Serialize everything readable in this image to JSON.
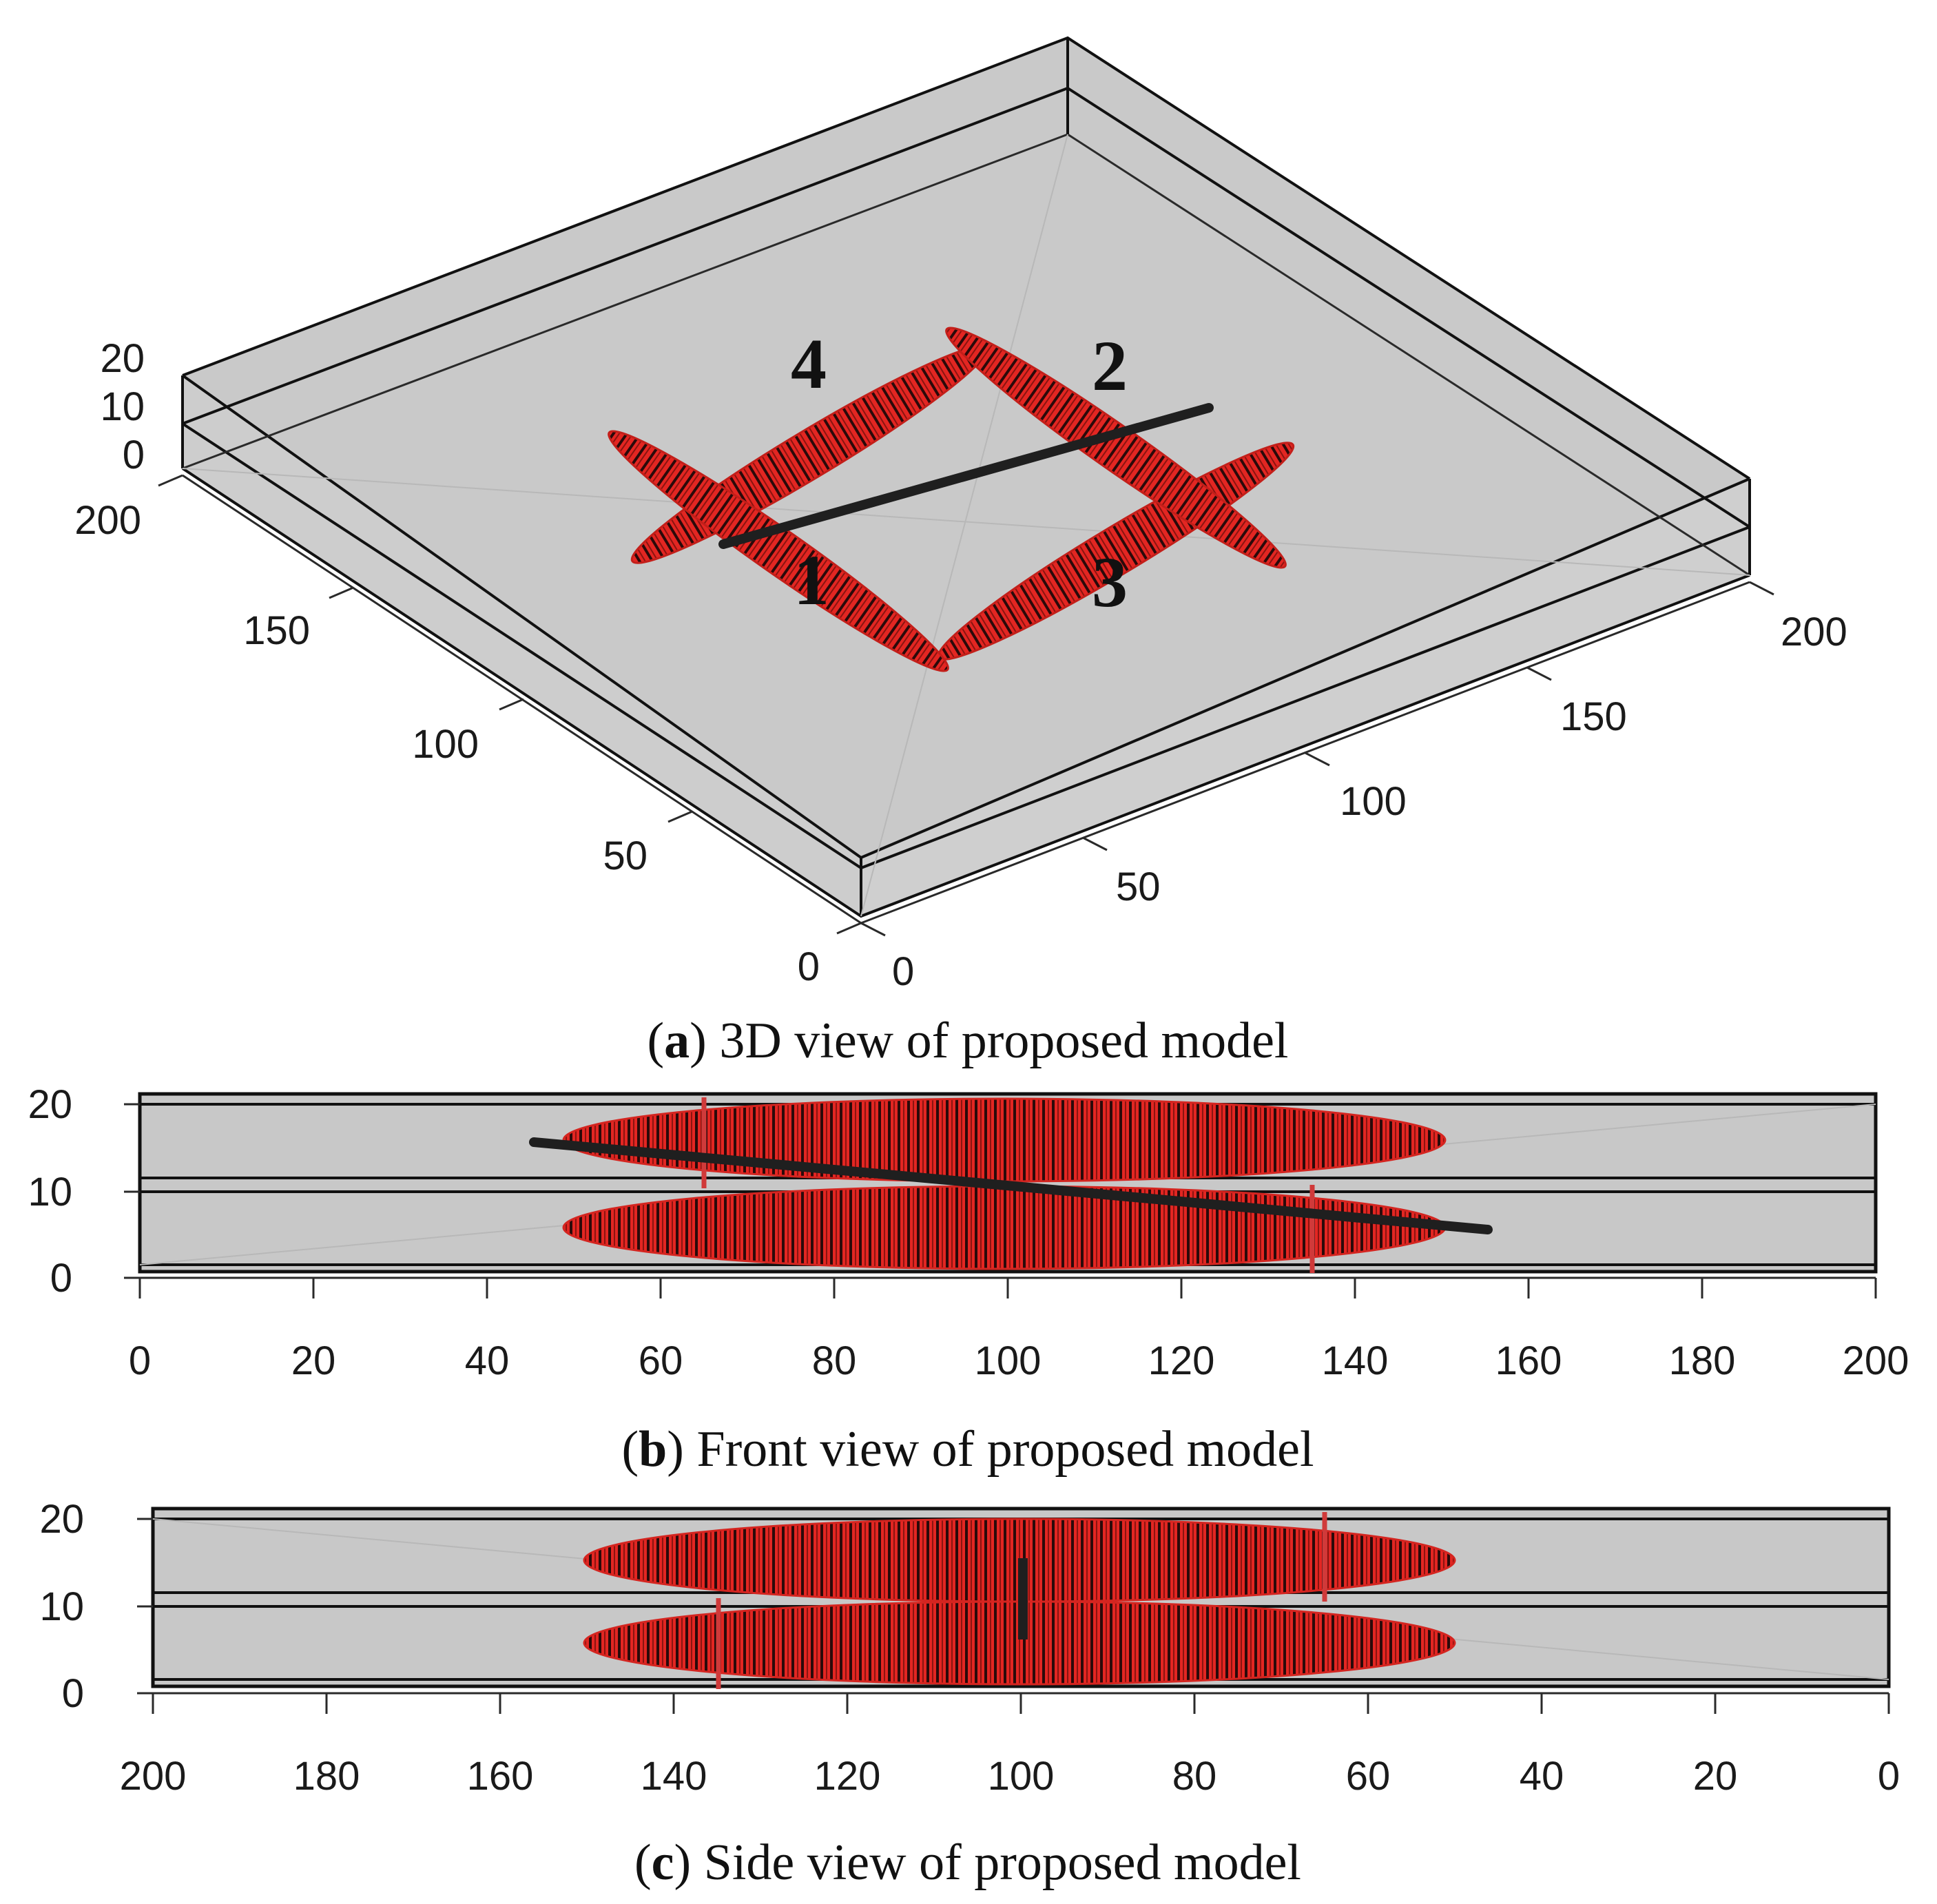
{
  "panels": {
    "a": {
      "caption_letter": "a",
      "caption_text": "3D view of proposed model",
      "z_ticks": [
        "20",
        "10",
        "0"
      ],
      "left_axis_ticks": [
        "200",
        "150",
        "100",
        "50",
        "0"
      ],
      "right_axis_ticks": [
        "0",
        "50",
        "100",
        "150",
        "200"
      ],
      "fracture_labels": [
        "1",
        "2",
        "3",
        "4"
      ]
    },
    "b": {
      "caption_letter": "b",
      "caption_text": "Front view of proposed model",
      "y_ticks": [
        "20",
        "10",
        "0"
      ],
      "x_ticks": [
        "0",
        "20",
        "40",
        "60",
        "80",
        "100",
        "120",
        "140",
        "160",
        "180",
        "200"
      ]
    },
    "c": {
      "caption_letter": "c",
      "caption_text": "Side view of proposed model",
      "y_ticks": [
        "20",
        "10",
        "0"
      ],
      "x_ticks": [
        "200",
        "180",
        "160",
        "140",
        "120",
        "100",
        "80",
        "60",
        "40",
        "20",
        "0"
      ]
    }
  },
  "colors": {
    "block": "#c4c4c4",
    "block_top": "#cacaca",
    "fracture": "#e32622",
    "fracture_stripe": "#2b0a0a",
    "wellbore": "#1f1f1f",
    "edge": "#111111"
  }
}
